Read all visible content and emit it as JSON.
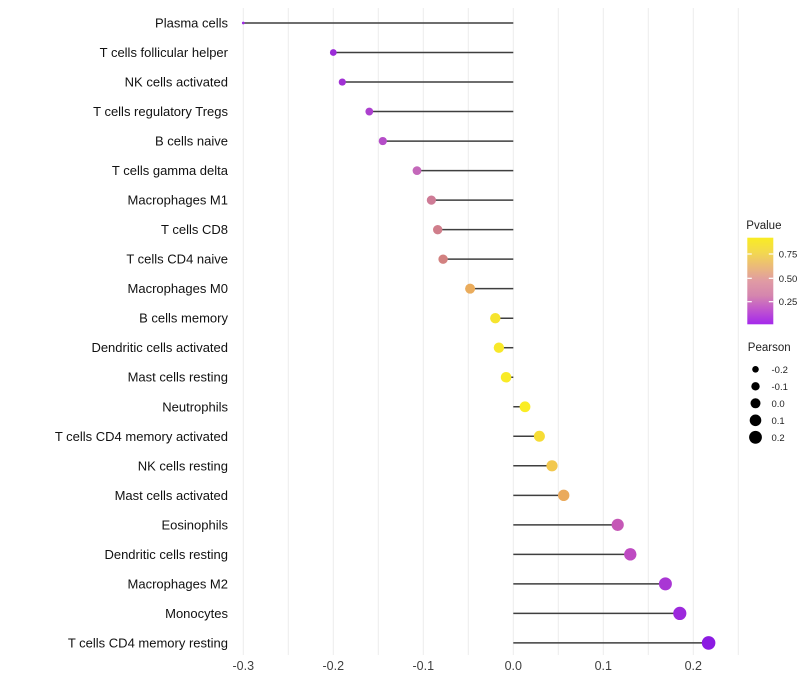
{
  "chart_data": {
    "type": "scatter",
    "variant": "lollipop",
    "title": "",
    "xlabel": "",
    "ylabel": "",
    "xlim": [
      -0.335,
      0.26
    ],
    "x_ticks": [
      -0.3,
      -0.2,
      -0.1,
      0.0,
      0.1,
      0.2
    ],
    "x_tick_labels": [
      "-0.3",
      "-0.2",
      "-0.1",
      "0.0",
      "0.1",
      "0.2"
    ],
    "grid": {
      "show": true,
      "step": 0.05,
      "from": -0.3,
      "to": 0.25,
      "color": "#ECECEC"
    },
    "baseline_x": 0,
    "rows": [
      {
        "label": "Plasma cells",
        "pearson": -0.3,
        "dot_radius": 1.4,
        "dot_color": "#9D2BE4"
      },
      {
        "label": "T cells follicular helper",
        "pearson": -0.2,
        "dot_radius": 3.4,
        "dot_color": "#9B2BD8"
      },
      {
        "label": "NK cells activated",
        "pearson": -0.19,
        "dot_radius": 3.6,
        "dot_color": "#A131D4"
      },
      {
        "label": "T cells regulatory  Tregs",
        "pearson": -0.16,
        "dot_radius": 3.9,
        "dot_color": "#AC40CE"
      },
      {
        "label": "B cells naive",
        "pearson": -0.145,
        "dot_radius": 4.1,
        "dot_color": "#B54DC8"
      },
      {
        "label": "T cells gamma delta",
        "pearson": -0.107,
        "dot_radius": 4.4,
        "dot_color": "#C468BA"
      },
      {
        "label": "Macrophages M1",
        "pearson": -0.091,
        "dot_radius": 4.6,
        "dot_color": "#CE7B96"
      },
      {
        "label": "T cells CD8",
        "pearson": -0.084,
        "dot_radius": 4.7,
        "dot_color": "#D07E8B"
      },
      {
        "label": "T cells CD4 naive",
        "pearson": -0.078,
        "dot_radius": 4.7,
        "dot_color": "#D28180"
      },
      {
        "label": "Macrophages M0",
        "pearson": -0.048,
        "dot_radius": 5.0,
        "dot_color": "#EAAC5C"
      },
      {
        "label": "B cells memory",
        "pearson": -0.02,
        "dot_radius": 5.2,
        "dot_color": "#F6E42E"
      },
      {
        "label": "Dendritic cells activated",
        "pearson": -0.016,
        "dot_radius": 5.2,
        "dot_color": "#F8E829"
      },
      {
        "label": "Mast cells resting",
        "pearson": -0.008,
        "dot_radius": 5.3,
        "dot_color": "#F9EB26"
      },
      {
        "label": "Neutrophils",
        "pearson": 0.013,
        "dot_radius": 5.4,
        "dot_color": "#FAED24"
      },
      {
        "label": "T cells CD4 memory activated",
        "pearson": 0.029,
        "dot_radius": 5.5,
        "dot_color": "#F6DC35"
      },
      {
        "label": "NK cells resting",
        "pearson": 0.043,
        "dot_radius": 5.6,
        "dot_color": "#F2C84E"
      },
      {
        "label": "Mast cells activated",
        "pearson": 0.056,
        "dot_radius": 5.7,
        "dot_color": "#EAAA5C"
      },
      {
        "label": "Eosinophils",
        "pearson": 0.116,
        "dot_radius": 6.1,
        "dot_color": "#C558B6"
      },
      {
        "label": "Dendritic cells resting",
        "pearson": 0.13,
        "dot_radius": 6.2,
        "dot_color": "#BE4AC2"
      },
      {
        "label": "Macrophages M2",
        "pearson": 0.169,
        "dot_radius": 6.5,
        "dot_color": "#A936D4"
      },
      {
        "label": "Monocytes",
        "pearson": 0.185,
        "dot_radius": 6.6,
        "dot_color": "#9C29DC"
      },
      {
        "label": "T cells CD4 memory resting",
        "pearson": 0.217,
        "dot_radius": 6.8,
        "dot_color": "#8C1BE2"
      }
    ],
    "legend": {
      "pvalue": {
        "title": "Pvalue",
        "tick_labels": [
          "0.75",
          "0.50",
          "0.25"
        ],
        "gradient_top_to_bottom": [
          "#F9EC23",
          "#F3D94E",
          "#EBBA79",
          "#E09BA4",
          "#D586AE",
          "#C055CE",
          "#A428EC"
        ]
      },
      "pearson": {
        "title": "Pearson",
        "items": [
          {
            "label": "-0.2",
            "radius": 3.3
          },
          {
            "label": "-0.1",
            "radius": 4.2
          },
          {
            "label": "0.0",
            "radius": 5.0
          },
          {
            "label": "0.1",
            "radius": 5.8
          },
          {
            "label": "0.2",
            "radius": 6.4
          }
        ],
        "dot_color": "#000000"
      }
    },
    "styles": {
      "background": "#FFFFFF",
      "stick_color": "#3F3F3F",
      "row_label_color": "#111111",
      "axis_text_color": "#404040",
      "legend_text_color": "#222222"
    }
  }
}
